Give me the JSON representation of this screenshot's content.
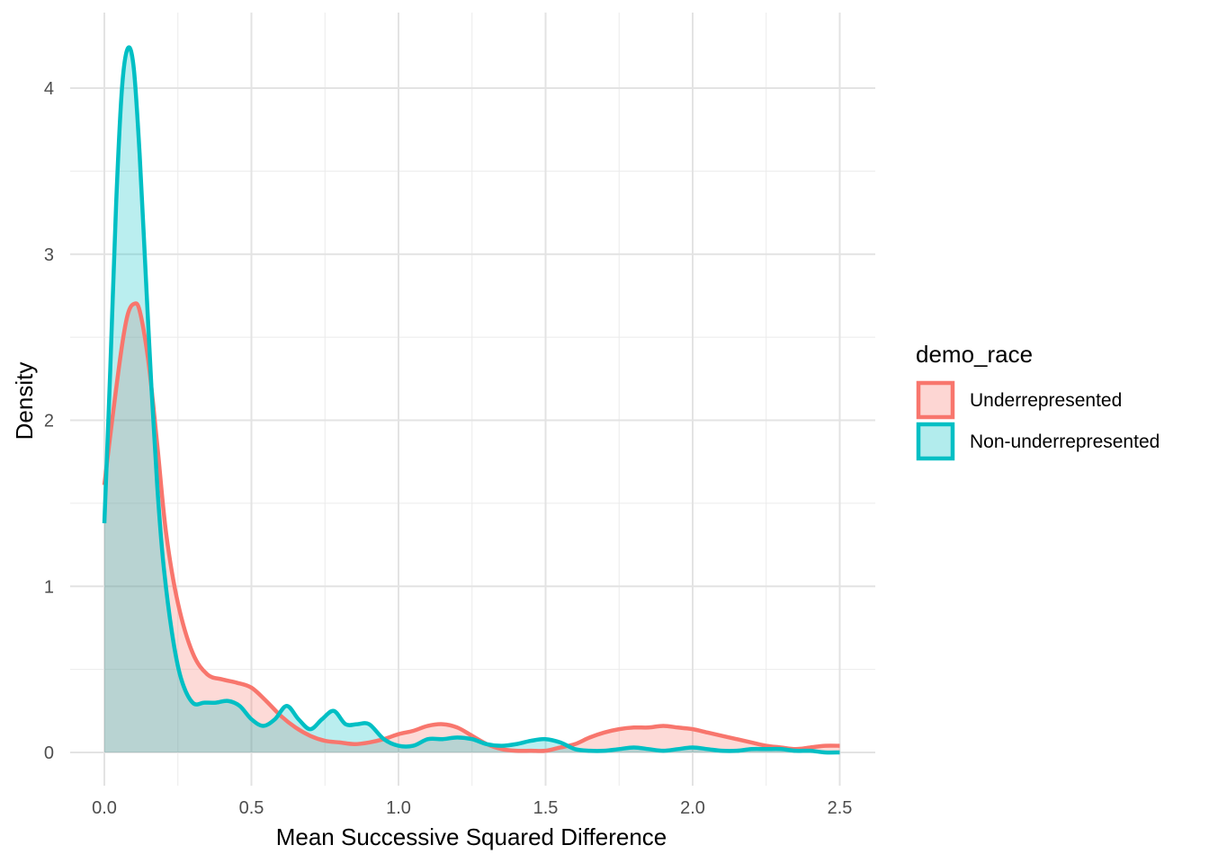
{
  "chart_data": {
    "type": "area",
    "title": "",
    "xlabel": "Mean Successive Squared Difference",
    "ylabel": "Density",
    "xlim": [
      -0.12,
      2.5
    ],
    "ylim": [
      -0.17,
      4.37
    ],
    "x_ticks": [
      0.0,
      0.5,
      1.0,
      1.5,
      2.0,
      2.5
    ],
    "x_tick_labels": [
      "0.0",
      "0.5",
      "1.0",
      "1.5",
      "2.0",
      "2.5"
    ],
    "y_ticks": [
      0,
      1,
      2,
      3,
      4
    ],
    "y_tick_labels": [
      "0",
      "1",
      "2",
      "3",
      "4"
    ],
    "grid": true,
    "legend": {
      "title": "demo_race",
      "position": "right"
    },
    "series": [
      {
        "name": "Underrepresented",
        "line_color": "#F8766D",
        "fill_color": "#F8766D",
        "points": [
          [
            0.0,
            1.61
          ],
          [
            0.03,
            2.05
          ],
          [
            0.06,
            2.45
          ],
          [
            0.08,
            2.64
          ],
          [
            0.1,
            2.7
          ],
          [
            0.12,
            2.66
          ],
          [
            0.15,
            2.35
          ],
          [
            0.18,
            1.85
          ],
          [
            0.21,
            1.32
          ],
          [
            0.25,
            0.9
          ],
          [
            0.3,
            0.6
          ],
          [
            0.35,
            0.47
          ],
          [
            0.4,
            0.44
          ],
          [
            0.45,
            0.42
          ],
          [
            0.5,
            0.39
          ],
          [
            0.55,
            0.31
          ],
          [
            0.6,
            0.22
          ],
          [
            0.65,
            0.15
          ],
          [
            0.7,
            0.1
          ],
          [
            0.75,
            0.07
          ],
          [
            0.8,
            0.06
          ],
          [
            0.85,
            0.05
          ],
          [
            0.9,
            0.06
          ],
          [
            0.95,
            0.08
          ],
          [
            1.0,
            0.11
          ],
          [
            1.05,
            0.13
          ],
          [
            1.1,
            0.16
          ],
          [
            1.15,
            0.17
          ],
          [
            1.2,
            0.15
          ],
          [
            1.25,
            0.1
          ],
          [
            1.3,
            0.05
          ],
          [
            1.35,
            0.02
          ],
          [
            1.4,
            0.01
          ],
          [
            1.45,
            0.01
          ],
          [
            1.5,
            0.01
          ],
          [
            1.55,
            0.03
          ],
          [
            1.6,
            0.05
          ],
          [
            1.65,
            0.09
          ],
          [
            1.7,
            0.12
          ],
          [
            1.75,
            0.14
          ],
          [
            1.8,
            0.15
          ],
          [
            1.85,
            0.15
          ],
          [
            1.9,
            0.16
          ],
          [
            1.95,
            0.15
          ],
          [
            2.0,
            0.14
          ],
          [
            2.05,
            0.12
          ],
          [
            2.1,
            0.1
          ],
          [
            2.15,
            0.08
          ],
          [
            2.2,
            0.06
          ],
          [
            2.25,
            0.04
          ],
          [
            2.3,
            0.03
          ],
          [
            2.35,
            0.02
          ],
          [
            2.4,
            0.03
          ],
          [
            2.45,
            0.04
          ],
          [
            2.5,
            0.04
          ]
        ]
      },
      {
        "name": "Non-underrepresented",
        "line_color": "#00BFC4",
        "fill_color": "#00BFC4",
        "points": [
          [
            0.0,
            1.38
          ],
          [
            0.02,
            2.3
          ],
          [
            0.04,
            3.3
          ],
          [
            0.06,
            4.0
          ],
          [
            0.08,
            4.24
          ],
          [
            0.1,
            4.12
          ],
          [
            0.12,
            3.6
          ],
          [
            0.14,
            2.9
          ],
          [
            0.16,
            2.2
          ],
          [
            0.18,
            1.6
          ],
          [
            0.2,
            1.15
          ],
          [
            0.23,
            0.72
          ],
          [
            0.26,
            0.45
          ],
          [
            0.3,
            0.3
          ],
          [
            0.34,
            0.3
          ],
          [
            0.38,
            0.3
          ],
          [
            0.42,
            0.31
          ],
          [
            0.46,
            0.28
          ],
          [
            0.5,
            0.2
          ],
          [
            0.54,
            0.16
          ],
          [
            0.58,
            0.2
          ],
          [
            0.62,
            0.28
          ],
          [
            0.66,
            0.2
          ],
          [
            0.7,
            0.14
          ],
          [
            0.74,
            0.2
          ],
          [
            0.78,
            0.25
          ],
          [
            0.82,
            0.17
          ],
          [
            0.86,
            0.17
          ],
          [
            0.9,
            0.17
          ],
          [
            0.95,
            0.08
          ],
          [
            1.0,
            0.04
          ],
          [
            1.05,
            0.04
          ],
          [
            1.1,
            0.08
          ],
          [
            1.15,
            0.08
          ],
          [
            1.2,
            0.09
          ],
          [
            1.25,
            0.08
          ],
          [
            1.3,
            0.05
          ],
          [
            1.35,
            0.04
          ],
          [
            1.4,
            0.05
          ],
          [
            1.45,
            0.07
          ],
          [
            1.5,
            0.08
          ],
          [
            1.55,
            0.06
          ],
          [
            1.6,
            0.02
          ],
          [
            1.65,
            0.01
          ],
          [
            1.7,
            0.01
          ],
          [
            1.75,
            0.02
          ],
          [
            1.8,
            0.03
          ],
          [
            1.85,
            0.02
          ],
          [
            1.9,
            0.01
          ],
          [
            1.95,
            0.02
          ],
          [
            2.0,
            0.03
          ],
          [
            2.05,
            0.02
          ],
          [
            2.1,
            0.01
          ],
          [
            2.15,
            0.01
          ],
          [
            2.2,
            0.02
          ],
          [
            2.25,
            0.02
          ],
          [
            2.3,
            0.02
          ],
          [
            2.35,
            0.01
          ],
          [
            2.4,
            0.01
          ],
          [
            2.45,
            0.0
          ],
          [
            2.5,
            0.0
          ]
        ]
      }
    ]
  }
}
